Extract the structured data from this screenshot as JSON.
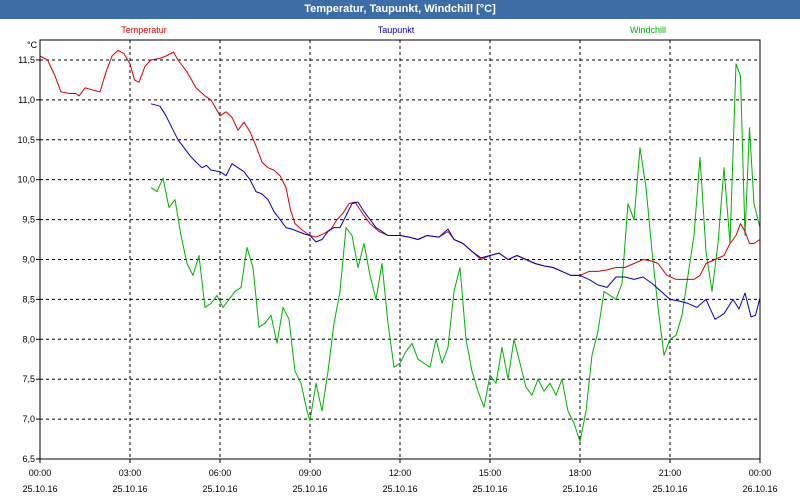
{
  "window": {
    "title": "Temperatur, Taupunkt, Windchill [°C]"
  },
  "chart_data": {
    "type": "line",
    "title": "Temperatur, Taupunkt, Windchill [°C]",
    "ylabel": "°C",
    "xlabel": "",
    "xlim": [
      0,
      24
    ],
    "ylim": [
      6.5,
      11.75
    ],
    "grid": true,
    "legend_position": "top",
    "y_ticks": [
      "6,5",
      "7,0",
      "7,5",
      "8,0",
      "8,5",
      "9,0",
      "9,5",
      "10,0",
      "10,5",
      "11,0",
      "11,5"
    ],
    "x_ticks": [
      {
        "time": "00:00",
        "date": "25.10.16"
      },
      {
        "time": "03:00",
        "date": "25.10.16"
      },
      {
        "time": "06:00",
        "date": "25.10.16"
      },
      {
        "time": "09:00",
        "date": "25.10.16"
      },
      {
        "time": "12:00",
        "date": "25.10.16"
      },
      {
        "time": "15:00",
        "date": "25.10.16"
      },
      {
        "time": "18:00",
        "date": "25.10.16"
      },
      {
        "time": "21:00",
        "date": "25.10.16"
      },
      {
        "time": "00:00",
        "date": "26.10.16"
      }
    ],
    "series": [
      {
        "name": "Temperatur",
        "color": "#d40000",
        "points": [
          [
            0,
            11.55
          ],
          [
            0.25,
            11.5
          ],
          [
            0.5,
            11.3
          ],
          [
            0.7,
            11.1
          ],
          [
            1.0,
            11.08
          ],
          [
            1.2,
            11.08
          ],
          [
            1.3,
            11.05
          ],
          [
            1.5,
            11.15
          ],
          [
            1.8,
            11.12
          ],
          [
            2.0,
            11.1
          ],
          [
            2.2,
            11.35
          ],
          [
            2.4,
            11.55
          ],
          [
            2.6,
            11.62
          ],
          [
            2.8,
            11.58
          ],
          [
            3.0,
            11.45
          ],
          [
            3.15,
            11.25
          ],
          [
            3.3,
            11.22
          ],
          [
            3.5,
            11.42
          ],
          [
            3.7,
            11.5
          ],
          [
            4.0,
            11.52
          ],
          [
            4.2,
            11.55
          ],
          [
            4.45,
            11.6
          ],
          [
            4.6,
            11.5
          ],
          [
            4.9,
            11.35
          ],
          [
            5.2,
            11.15
          ],
          [
            5.5,
            11.05
          ],
          [
            5.7,
            11.0
          ],
          [
            5.85,
            10.9
          ],
          [
            6.0,
            10.8
          ],
          [
            6.2,
            10.85
          ],
          [
            6.4,
            10.78
          ],
          [
            6.6,
            10.62
          ],
          [
            6.8,
            10.72
          ],
          [
            7.0,
            10.6
          ],
          [
            7.2,
            10.42
          ],
          [
            7.4,
            10.22
          ],
          [
            7.6,
            10.15
          ],
          [
            7.8,
            10.12
          ],
          [
            8.0,
            10.05
          ],
          [
            8.2,
            9.9
          ],
          [
            8.35,
            9.62
          ],
          [
            8.5,
            9.45
          ],
          [
            8.7,
            9.38
          ],
          [
            9.0,
            9.3
          ],
          [
            9.2,
            9.28
          ],
          [
            9.5,
            9.33
          ],
          [
            9.7,
            9.38
          ],
          [
            9.9,
            9.5
          ],
          [
            10.1,
            9.58
          ],
          [
            10.3,
            9.7
          ],
          [
            10.5,
            9.72
          ],
          [
            10.8,
            9.55
          ],
          [
            11.0,
            9.45
          ],
          [
            11.3,
            9.35
          ],
          [
            11.6,
            9.3
          ],
          [
            12.0,
            9.3
          ],
          [
            12.3,
            9.28
          ],
          [
            12.6,
            9.25
          ],
          [
            12.9,
            9.3
          ],
          [
            13.3,
            9.28
          ],
          [
            13.6,
            9.35
          ],
          [
            13.8,
            9.25
          ],
          [
            14.1,
            9.2
          ],
          [
            14.4,
            9.1
          ],
          [
            14.7,
            9.0
          ],
          [
            15.0,
            9.05
          ],
          [
            15.3,
            9.08
          ],
          [
            15.6,
            9.0
          ],
          [
            15.9,
            9.05
          ],
          [
            16.2,
            9.0
          ],
          [
            16.5,
            8.95
          ],
          [
            16.8,
            8.92
          ],
          [
            17.1,
            8.9
          ],
          [
            17.4,
            8.85
          ],
          [
            17.7,
            8.8
          ],
          [
            18.0,
            8.8
          ],
          [
            18.3,
            8.85
          ],
          [
            18.6,
            8.85
          ],
          [
            18.9,
            8.87
          ],
          [
            19.2,
            8.9
          ],
          [
            19.5,
            8.9
          ],
          [
            19.8,
            8.95
          ],
          [
            20.1,
            9.0
          ],
          [
            20.4,
            8.98
          ],
          [
            20.6,
            8.95
          ],
          [
            20.9,
            8.8
          ],
          [
            21.2,
            8.75
          ],
          [
            21.5,
            8.75
          ],
          [
            21.8,
            8.75
          ],
          [
            22.0,
            8.8
          ],
          [
            22.2,
            8.95
          ],
          [
            22.5,
            9.0
          ],
          [
            22.8,
            9.05
          ],
          [
            23.0,
            9.2
          ],
          [
            23.2,
            9.3
          ],
          [
            23.35,
            9.45
          ],
          [
            23.5,
            9.35
          ],
          [
            23.65,
            9.2
          ],
          [
            23.8,
            9.2
          ],
          [
            24.0,
            9.25
          ]
        ]
      },
      {
        "name": "Taupunkt",
        "color": "#0000c0",
        "points": [
          [
            3.7,
            10.95
          ],
          [
            4.0,
            10.92
          ],
          [
            4.2,
            10.8
          ],
          [
            4.4,
            10.65
          ],
          [
            4.6,
            10.5
          ],
          [
            4.8,
            10.4
          ],
          [
            5.0,
            10.3
          ],
          [
            5.2,
            10.22
          ],
          [
            5.4,
            10.15
          ],
          [
            5.55,
            10.18
          ],
          [
            5.7,
            10.12
          ],
          [
            6.0,
            10.1
          ],
          [
            6.2,
            10.05
          ],
          [
            6.4,
            10.2
          ],
          [
            6.6,
            10.15
          ],
          [
            6.8,
            10.1
          ],
          [
            7.0,
            10.0
          ],
          [
            7.2,
            9.85
          ],
          [
            7.4,
            9.82
          ],
          [
            7.6,
            9.75
          ],
          [
            7.8,
            9.6
          ],
          [
            8.0,
            9.5
          ],
          [
            8.2,
            9.4
          ],
          [
            8.4,
            9.38
          ],
          [
            8.6,
            9.35
          ],
          [
            8.8,
            9.32
          ],
          [
            9.0,
            9.3
          ],
          [
            9.2,
            9.22
          ],
          [
            9.4,
            9.25
          ],
          [
            9.6,
            9.35
          ],
          [
            9.8,
            9.4
          ],
          [
            10.0,
            9.4
          ],
          [
            10.2,
            9.55
          ],
          [
            10.4,
            9.7
          ],
          [
            10.6,
            9.72
          ],
          [
            10.8,
            9.6
          ],
          [
            11.0,
            9.5
          ],
          [
            11.2,
            9.4
          ],
          [
            11.4,
            9.35
          ],
          [
            11.6,
            9.3
          ],
          [
            12.0,
            9.3
          ],
          [
            12.3,
            9.28
          ],
          [
            12.6,
            9.25
          ],
          [
            12.9,
            9.3
          ],
          [
            13.3,
            9.28
          ],
          [
            13.6,
            9.38
          ],
          [
            13.8,
            9.25
          ],
          [
            14.1,
            9.2
          ],
          [
            14.4,
            9.1
          ],
          [
            14.7,
            9.02
          ],
          [
            15.0,
            9.05
          ],
          [
            15.3,
            9.08
          ],
          [
            15.6,
            9.0
          ],
          [
            15.9,
            9.05
          ],
          [
            16.2,
            9.0
          ],
          [
            16.5,
            8.95
          ],
          [
            16.8,
            8.92
          ],
          [
            17.1,
            8.9
          ],
          [
            17.4,
            8.85
          ],
          [
            17.7,
            8.8
          ],
          [
            18.0,
            8.8
          ],
          [
            18.3,
            8.75
          ],
          [
            18.6,
            8.68
          ],
          [
            18.9,
            8.65
          ],
          [
            19.2,
            8.78
          ],
          [
            19.5,
            8.78
          ],
          [
            19.8,
            8.75
          ],
          [
            20.1,
            8.78
          ],
          [
            20.4,
            8.7
          ],
          [
            20.7,
            8.6
          ],
          [
            21.0,
            8.5
          ],
          [
            21.3,
            8.48
          ],
          [
            21.6,
            8.45
          ],
          [
            21.9,
            8.4
          ],
          [
            22.2,
            8.5
          ],
          [
            22.5,
            8.25
          ],
          [
            22.8,
            8.32
          ],
          [
            23.1,
            8.5
          ],
          [
            23.3,
            8.38
          ],
          [
            23.5,
            8.58
          ],
          [
            23.7,
            8.28
          ],
          [
            23.85,
            8.3
          ],
          [
            24.0,
            8.52
          ]
        ]
      },
      {
        "name": "Windchill",
        "color": "#00b000",
        "points": [
          [
            3.7,
            9.9
          ],
          [
            3.9,
            9.85
          ],
          [
            4.1,
            10.02
          ],
          [
            4.3,
            9.65
          ],
          [
            4.5,
            9.75
          ],
          [
            4.7,
            9.3
          ],
          [
            4.9,
            8.95
          ],
          [
            5.1,
            8.8
          ],
          [
            5.3,
            9.05
          ],
          [
            5.5,
            8.4
          ],
          [
            5.7,
            8.45
          ],
          [
            5.9,
            8.55
          ],
          [
            6.1,
            8.4
          ],
          [
            6.3,
            8.5
          ],
          [
            6.5,
            8.6
          ],
          [
            6.7,
            8.65
          ],
          [
            6.9,
            9.15
          ],
          [
            7.1,
            8.9
          ],
          [
            7.3,
            8.15
          ],
          [
            7.5,
            8.2
          ],
          [
            7.7,
            8.3
          ],
          [
            7.9,
            7.95
          ],
          [
            8.1,
            8.4
          ],
          [
            8.3,
            8.25
          ],
          [
            8.5,
            7.6
          ],
          [
            8.7,
            7.45
          ],
          [
            8.9,
            7.1
          ],
          [
            9.0,
            6.98
          ],
          [
            9.2,
            7.45
          ],
          [
            9.4,
            7.1
          ],
          [
            9.6,
            7.6
          ],
          [
            9.8,
            8.2
          ],
          [
            10.0,
            8.6
          ],
          [
            10.2,
            9.4
          ],
          [
            10.4,
            9.3
          ],
          [
            10.6,
            8.9
          ],
          [
            10.8,
            9.2
          ],
          [
            11.0,
            8.8
          ],
          [
            11.2,
            8.5
          ],
          [
            11.4,
            8.95
          ],
          [
            11.6,
            8.2
          ],
          [
            11.8,
            7.65
          ],
          [
            12.0,
            7.7
          ],
          [
            12.2,
            7.85
          ],
          [
            12.4,
            7.95
          ],
          [
            12.6,
            7.75
          ],
          [
            12.8,
            7.7
          ],
          [
            13.0,
            7.65
          ],
          [
            13.2,
            8.0
          ],
          [
            13.4,
            7.7
          ],
          [
            13.6,
            7.9
          ],
          [
            13.8,
            8.6
          ],
          [
            14.0,
            8.9
          ],
          [
            14.2,
            8.0
          ],
          [
            14.4,
            7.6
          ],
          [
            14.6,
            7.35
          ],
          [
            14.8,
            7.15
          ],
          [
            15.0,
            7.55
          ],
          [
            15.2,
            7.45
          ],
          [
            15.4,
            7.9
          ],
          [
            15.6,
            7.5
          ],
          [
            15.8,
            8.0
          ],
          [
            16.0,
            7.7
          ],
          [
            16.2,
            7.4
          ],
          [
            16.4,
            7.3
          ],
          [
            16.6,
            7.5
          ],
          [
            16.8,
            7.35
          ],
          [
            17.0,
            7.45
          ],
          [
            17.2,
            7.3
          ],
          [
            17.4,
            7.5
          ],
          [
            17.6,
            7.1
          ],
          [
            17.8,
            6.95
          ],
          [
            18.0,
            6.72
          ],
          [
            18.2,
            7.1
          ],
          [
            18.4,
            7.8
          ],
          [
            18.6,
            8.1
          ],
          [
            18.8,
            8.6
          ],
          [
            19.0,
            8.55
          ],
          [
            19.2,
            8.5
          ],
          [
            19.4,
            8.7
          ],
          [
            19.6,
            9.7
          ],
          [
            19.8,
            9.5
          ],
          [
            20.0,
            10.4
          ],
          [
            20.2,
            9.9
          ],
          [
            20.4,
            9.1
          ],
          [
            20.6,
            8.4
          ],
          [
            20.8,
            7.8
          ],
          [
            21.0,
            8.0
          ],
          [
            21.2,
            8.05
          ],
          [
            21.4,
            8.3
          ],
          [
            21.6,
            8.8
          ],
          [
            21.8,
            9.3
          ],
          [
            22.0,
            10.28
          ],
          [
            22.2,
            9.1
          ],
          [
            22.4,
            8.6
          ],
          [
            22.6,
            9.2
          ],
          [
            22.8,
            10.15
          ],
          [
            23.0,
            9.2
          ],
          [
            23.2,
            11.45
          ],
          [
            23.35,
            11.3
          ],
          [
            23.5,
            9.3
          ],
          [
            23.65,
            10.65
          ],
          [
            23.8,
            9.7
          ],
          [
            24.0,
            9.4
          ]
        ]
      }
    ]
  }
}
